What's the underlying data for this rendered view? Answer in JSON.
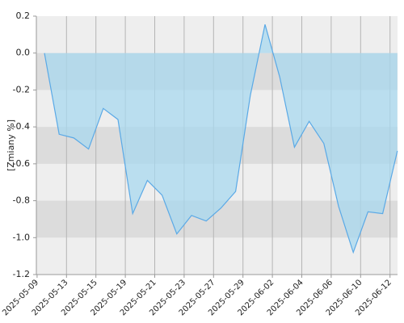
{
  "chart_data": {
    "type": "area",
    "y_label": "[Zmiany %]",
    "categories": [
      "2025-05-09",
      null,
      "2025-05-13",
      null,
      "2025-05-15",
      null,
      "2025-05-19",
      null,
      "2025-05-21",
      null,
      "2025-05-23",
      null,
      "2025-05-27",
      null,
      "2025-05-29",
      null,
      "2025-06-02",
      null,
      "2025-06-04",
      null,
      "2025-06-06",
      null,
      "2025-06-10",
      null,
      "2025-06-12"
    ],
    "values": [
      0,
      -0.44,
      -0.46,
      -0.52,
      -0.3,
      -0.36,
      -0.87,
      -0.69,
      -0.77,
      -0.98,
      -0.88,
      -0.91,
      -0.84,
      -0.75,
      -0.23,
      0.155,
      -0.13,
      -0.51,
      -0.37,
      -0.49,
      -0.83,
      -1.08,
      -0.86,
      -0.87,
      -0.53
    ],
    "color": "#5aa9e6",
    "fill_color": "#a8d8ef",
    "ylim": [
      -1.2,
      0.2
    ],
    "yticks": [
      0.2,
      {
        "value": 0,
        "label": "0.0"
      },
      -0.2,
      -0.4,
      -0.6,
      -0.8,
      {
        "value": -1,
        "label": "-1.0"
      },
      -1.2
    ],
    "grid": true
  }
}
